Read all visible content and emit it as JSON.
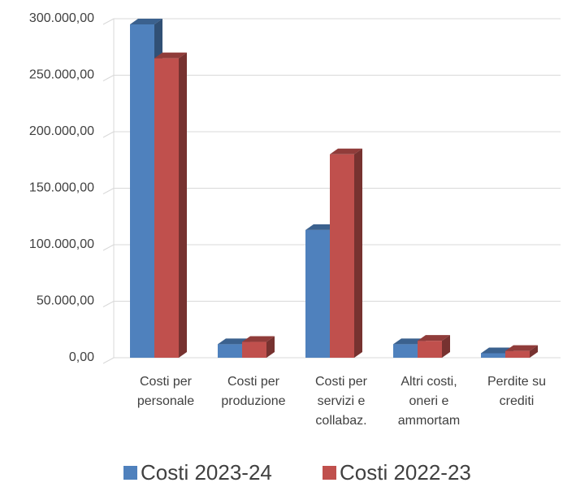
{
  "chart_data": {
    "type": "bar3d",
    "categories": [
      "Costi per personale",
      "Costi per produzione",
      "Costi per servizi e collabaz.",
      "Altri costi, oneri e ammortam",
      "Perdite su crediti"
    ],
    "series": [
      {
        "name": "Costi 2023-24",
        "color": "#4f81bd",
        "values": [
          295000,
          12000,
          113000,
          12000,
          4000
        ]
      },
      {
        "name": "Costi 2022-23",
        "color": "#c0504d",
        "values": [
          265000,
          14000,
          180000,
          15000,
          6000
        ]
      }
    ],
    "ylim": [
      0,
      300000
    ],
    "yticks": [
      {
        "value": 0,
        "label": "0,00"
      },
      {
        "value": 50000,
        "label": "50.000,00"
      },
      {
        "value": 100000,
        "label": "100.000,00"
      },
      {
        "value": 150000,
        "label": "150.000,00"
      },
      {
        "value": 200000,
        "label": "200.000,00"
      },
      {
        "value": 250000,
        "label": "250.000,00"
      },
      {
        "value": 300000,
        "label": "300.000,00"
      }
    ],
    "grid": true,
    "legend": "bottom"
  }
}
